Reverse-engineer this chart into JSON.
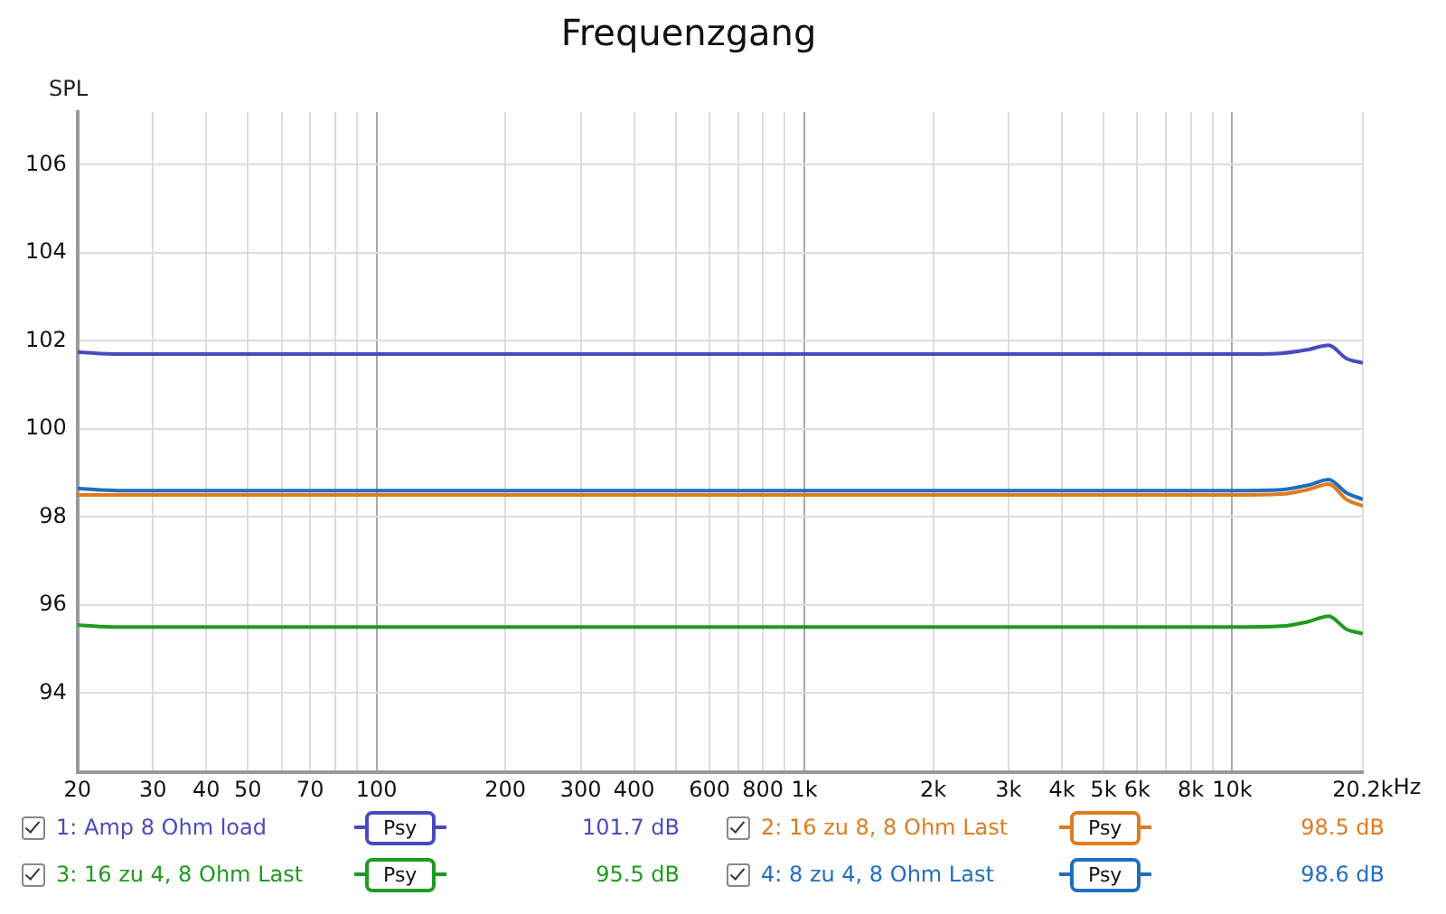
{
  "chart_data": {
    "type": "line",
    "title": "Frequenzgang",
    "ylabel": "SPL",
    "x": [
      20,
      25,
      30,
      100,
      1000,
      10000,
      13000,
      15000,
      16800,
      18500,
      20200
    ],
    "series": [
      {
        "name": "1: Amp 8 Ohm load",
        "color": "#4a4ac0",
        "values": [
          101.75,
          101.7,
          101.7,
          101.7,
          101.7,
          101.7,
          101.72,
          101.8,
          101.9,
          101.6,
          101.5
        ]
      },
      {
        "name": "2: 16 zu 8, 8 Ohm Last",
        "color": "#e07b20",
        "values": [
          98.5,
          98.5,
          98.5,
          98.5,
          98.5,
          98.5,
          98.52,
          98.62,
          98.75,
          98.4,
          98.25
        ]
      },
      {
        "name": "3: 16 zu 4, 8 Ohm Last",
        "color": "#1f9a1f",
        "values": [
          95.55,
          95.5,
          95.5,
          95.5,
          95.5,
          95.5,
          95.52,
          95.62,
          95.75,
          95.45,
          95.35
        ]
      },
      {
        "name": "4: 8 zu 4, 8 Ohm Last",
        "color": "#1f6fc0",
        "values": [
          98.65,
          98.6,
          98.6,
          98.6,
          98.6,
          98.6,
          98.62,
          98.72,
          98.85,
          98.55,
          98.4
        ]
      }
    ],
    "log": "x",
    "xlim": [
      20,
      20200
    ],
    "ylim": [
      92.2,
      107.2
    ],
    "xticks": [
      20,
      30,
      40,
      50,
      {
        "value": 60,
        "label": null
      },
      70,
      {
        "value": 80,
        "label": null
      },
      {
        "value": 90,
        "label": null
      },
      100,
      200,
      300,
      400,
      {
        "value": 500,
        "label": null
      },
      600,
      {
        "value": 700,
        "label": null
      },
      800,
      {
        "value": 900,
        "label": null
      },
      {
        "value": 1000,
        "label": "1k"
      },
      {
        "value": 2000,
        "label": "2k"
      },
      {
        "value": 3000,
        "label": "3k"
      },
      {
        "value": 4000,
        "label": "4k"
      },
      {
        "value": 5000,
        "label": "5k"
      },
      {
        "value": 6000,
        "label": "6k"
      },
      {
        "value": 7000,
        "label": null
      },
      {
        "value": 8000,
        "label": "8k"
      },
      {
        "value": 9000,
        "label": null
      },
      {
        "value": 10000,
        "label": "10k"
      },
      {
        "value": 20200,
        "label": "20.2k"
      }
    ],
    "xlabel": "Hz",
    "yticks": [
      94,
      96,
      98,
      100,
      102,
      104,
      106
    ],
    "grid": true,
    "legend": "bottom",
    "marker": "none",
    "line_style": "solid",
    "annotations": [
      "Psy",
      "101.7 dB",
      "98.5 dB",
      "95.5 dB",
      "98.6 dB"
    ]
  }
}
